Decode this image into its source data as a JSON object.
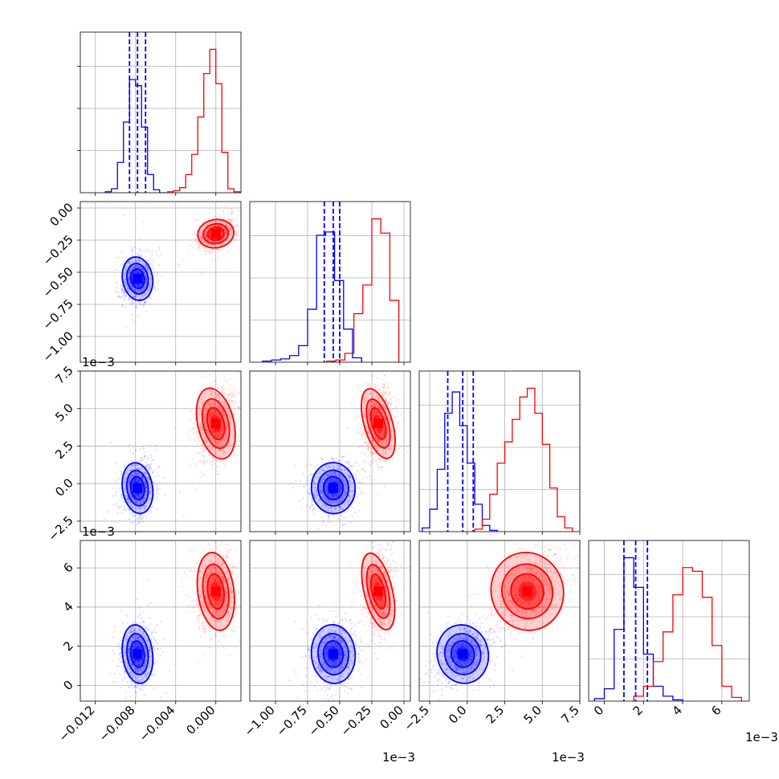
{
  "chart_data": {
    "type": "corner",
    "parameters": [
      {
        "range": [
          -0.0135,
          0.0025
        ],
        "ticks": [
          -0.012,
          -0.008,
          -0.004,
          0.0
        ],
        "tick_labels": [
          "−0.012",
          "−0.008",
          "−0.004",
          "0.000"
        ],
        "offset": ""
      },
      {
        "range": [
          -1.2,
          0.05
        ],
        "ticks": [
          -1.0,
          -0.75,
          -0.5,
          -0.25,
          0.0
        ],
        "tick_labels": [
          "−1.00",
          "−0.75",
          "−0.50",
          "−0.25",
          "0.00"
        ],
        "offset": "1e−3"
      },
      {
        "range": [
          -3.2,
          7.5
        ],
        "ticks": [
          -2.5,
          0.0,
          2.5,
          5.0,
          7.5
        ],
        "tick_labels": [
          "−2.5",
          "0.0",
          "2.5",
          "5.0",
          "7.5"
        ],
        "offset": "1e−3"
      },
      {
        "range": [
          -0.8,
          7.4
        ],
        "ticks": [
          0,
          2,
          4,
          6
        ],
        "tick_labels": [
          "0",
          "2",
          "4",
          "6"
        ],
        "offset": "1e−3"
      }
    ],
    "series": [
      {
        "color": "#0000ff",
        "mean": [
          -0.0078,
          -0.55,
          -0.3,
          1.6
        ],
        "std": [
          0.00075,
          0.085,
          0.85,
          0.75
        ],
        "corr": [
          [
            1,
            0.2,
            0.15,
            0.1
          ],
          [
            0.2,
            1,
            0.1,
            0.1
          ],
          [
            0.15,
            0.1,
            1,
            0.35
          ],
          [
            0.1,
            0.1,
            0.35,
            1
          ]
        ],
        "histograms": [
          {
            "edges": [
              -0.011,
              -0.0104,
              -0.0098,
              -0.0092,
              -0.0086,
              -0.008,
              -0.0074,
              -0.0068,
              -0.0062,
              -0.0056,
              -0.005
            ],
            "counts": [
              1,
              4,
              30,
              70,
              112,
              106,
              65,
              18,
              3,
              0
            ]
          },
          {
            "edges": [
              -1.1,
              -1.03,
              -0.96,
              -0.89,
              -0.82,
              -0.75,
              -0.68,
              -0.61,
              -0.54,
              -0.47,
              -0.4,
              -0.33
            ],
            "counts": [
              1,
              2,
              3,
              6,
              15,
              48,
              115,
              118,
              74,
              30,
              4
            ]
          },
          {
            "edges": [
              -3.0,
              -2.5,
              -2.0,
              -1.5,
              -1.0,
              -0.5,
              0.0,
              0.5,
              1.0,
              1.5,
              2.0
            ],
            "counts": [
              3,
              18,
              50,
              95,
              112,
              85,
              55,
              22,
              5,
              1
            ]
          },
          {
            "edges": [
              -0.5,
              0.0,
              0.5,
              1.0,
              1.5,
              2.0,
              2.5,
              3.0,
              3.5,
              4.0
            ],
            "counts": [
              2,
              10,
              58,
              116,
              92,
              38,
              12,
              4,
              1
            ]
          }
        ],
        "quantiles": [
          [
            -0.0086,
            -0.0078,
            -0.007
          ],
          [
            -0.62,
            -0.55,
            -0.5
          ],
          [
            -1.3,
            -0.3,
            0.4
          ],
          [
            1.0,
            1.6,
            2.2
          ]
        ]
      },
      {
        "color": "#ff0000",
        "mean": [
          0.0,
          -0.2,
          4.0,
          4.8
        ],
        "std": [
          0.0009,
          0.055,
          1.2,
          1.0
        ],
        "corr": [
          [
            1,
            0.35,
            0.2,
            0.1
          ],
          [
            0.35,
            1,
            0.2,
            0.15
          ],
          [
            0.2,
            0.2,
            1,
            0.45
          ],
          [
            0.1,
            0.15,
            0.45,
            1
          ]
        ],
        "histograms": [
          {
            "edges": [
              -0.0048,
              -0.0042,
              -0.0036,
              -0.003,
              -0.0024,
              -0.0018,
              -0.0012,
              -0.0006,
              0.0,
              0.0006,
              0.0012,
              0.0018,
              0.0024
            ],
            "counts": [
              1,
              2,
              5,
              18,
              38,
              75,
              118,
              142,
              108,
              40,
              4,
              1
            ]
          },
          {
            "edges": [
              -0.6,
              -0.53,
              -0.46,
              -0.39,
              -0.32,
              -0.25,
              -0.18,
              -0.11,
              -0.04
            ],
            "counts": [
              1,
              2,
              8,
              44,
              70,
              130,
              117,
              56
            ]
          },
          {
            "edges": [
              0.5,
              1.0,
              1.5,
              2.0,
              2.5,
              3.0,
              3.5,
              4.0,
              4.5,
              5.0,
              5.5,
              6.0,
              6.5,
              7.0
            ],
            "counts": [
              2,
              10,
              30,
              55,
              72,
              90,
              108,
              115,
              95,
              70,
              35,
              12,
              3
            ]
          },
          {
            "edges": [
              1.5,
              2.0,
              2.5,
              3.0,
              3.5,
              4.0,
              4.5,
              5.0,
              5.5,
              6.0,
              6.5,
              7.0
            ],
            "counts": [
              4,
              12,
              32,
              56,
              86,
              108,
              105,
              84,
              45,
              12,
              3
            ]
          }
        ],
        "quantiles": []
      }
    ],
    "grid": true
  }
}
